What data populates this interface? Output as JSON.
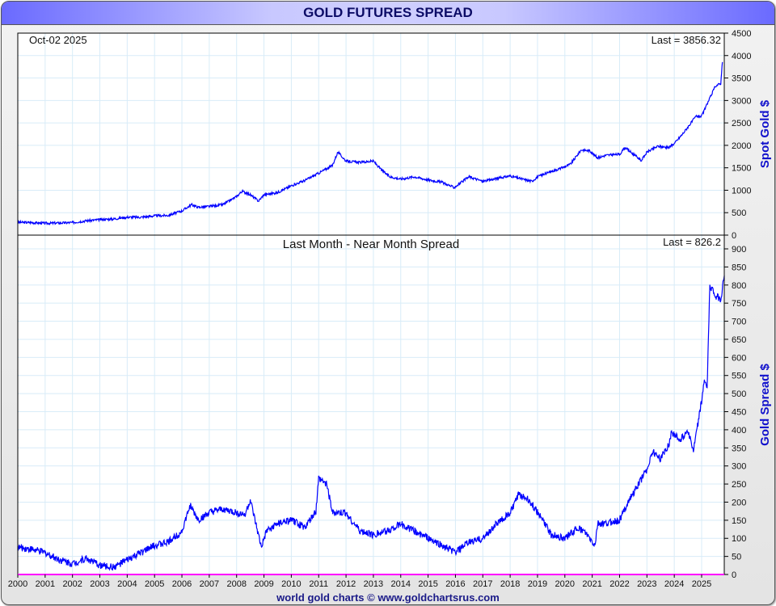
{
  "title": "GOLD FUTURES SPREAD",
  "footer": "world gold charts © www.goldchartsrus.com",
  "colors": {
    "line": "#0000ff",
    "grid": "#d8ecf8",
    "baseline": "#ff00ff",
    "axis_title": "#1010cc"
  },
  "chart_data": [
    {
      "type": "line",
      "date_label": "Oct-02  2025",
      "last_label": "Last = 3856.32",
      "ylabel": "Spot Gold $",
      "ylim": [
        0,
        4500
      ],
      "yticks": [
        0,
        500,
        1000,
        1500,
        2000,
        2500,
        3000,
        3500,
        4000,
        4500
      ],
      "x": [
        2000,
        2000.5,
        2001,
        2001.5,
        2002,
        2002.5,
        2003,
        2003.5,
        2004,
        2004.5,
        2005,
        2005.5,
        2006,
        2006.35,
        2006.6,
        2007,
        2007.5,
        2008,
        2008.2,
        2008.5,
        2008.8,
        2009,
        2009.5,
        2010,
        2010.5,
        2011,
        2011.5,
        2011.7,
        2012,
        2012.5,
        2013,
        2013.3,
        2013.6,
        2014,
        2014.5,
        2015,
        2015.5,
        2015.95,
        2016.5,
        2017,
        2017.5,
        2018,
        2018.5,
        2018.8,
        2019,
        2019.5,
        2019.9,
        2020.2,
        2020.6,
        2020.9,
        2021.2,
        2021.5,
        2022,
        2022.2,
        2022.8,
        2023,
        2023.4,
        2023.8,
        2024,
        2024.3,
        2024.8,
        2025,
        2025.3,
        2025.5,
        2025.7,
        2025.76
      ],
      "values": [
        285,
        280,
        265,
        270,
        280,
        320,
        345,
        360,
        400,
        400,
        430,
        440,
        540,
        680,
        620,
        640,
        680,
        860,
        980,
        900,
        760,
        900,
        950,
        1100,
        1220,
        1380,
        1550,
        1850,
        1650,
        1620,
        1650,
        1450,
        1300,
        1250,
        1300,
        1230,
        1180,
        1060,
        1300,
        1200,
        1260,
        1320,
        1240,
        1200,
        1300,
        1420,
        1500,
        1580,
        1900,
        1880,
        1720,
        1780,
        1800,
        1950,
        1660,
        1850,
        1980,
        1950,
        2040,
        2250,
        2650,
        2650,
        3050,
        3320,
        3380,
        3856
      ]
    },
    {
      "type": "line",
      "title": "Last Month - Near Month Spread",
      "last_label": "Last = 826.2",
      "ylabel": "Gold Spread $",
      "ylim": [
        0,
        900
      ],
      "yticks": [
        0,
        50,
        100,
        150,
        200,
        250,
        300,
        350,
        400,
        450,
        500,
        550,
        600,
        650,
        700,
        750,
        800,
        850,
        900
      ],
      "xlabel_ticks": [
        "2000",
        "2001",
        "2002",
        "2003",
        "2004",
        "2005",
        "2006",
        "2007",
        "2008",
        "2009",
        "2010",
        "2011",
        "2012",
        "2013",
        "2014",
        "2015",
        "2016",
        "2017",
        "2018",
        "2019",
        "2020",
        "2021",
        "2022",
        "2023",
        "2024",
        "2025"
      ],
      "x": [
        2000,
        2000.5,
        2001,
        2001.5,
        2002,
        2002.5,
        2003,
        2003.5,
        2004,
        2004.5,
        2005,
        2005.5,
        2006,
        2006.3,
        2006.6,
        2007,
        2007.5,
        2008,
        2008.3,
        2008.5,
        2008.9,
        2009.1,
        2009.5,
        2010,
        2010.5,
        2010.9,
        2011.0,
        2011.3,
        2011.5,
        2012,
        2012.5,
        2013,
        2013.5,
        2014,
        2014.5,
        2015,
        2015.5,
        2016,
        2016.5,
        2017,
        2017.5,
        2018,
        2018.3,
        2018.7,
        2019.2,
        2019.5,
        2020,
        2020.5,
        2020.8,
        2021.1,
        2021.2,
        2021.5,
        2022,
        2022.3,
        2022.7,
        2023,
        2023.2,
        2023.5,
        2023.8,
        2023.9,
        2024.2,
        2024.5,
        2024.7,
        2024.85,
        2025,
        2025.1,
        2025.2,
        2025.3,
        2025.5,
        2025.7,
        2025.83
      ],
      "values": [
        75,
        70,
        60,
        42,
        30,
        45,
        25,
        20,
        40,
        60,
        80,
        90,
        120,
        190,
        150,
        170,
        180,
        170,
        165,
        205,
        75,
        120,
        140,
        150,
        130,
        175,
        265,
        250,
        170,
        170,
        120,
        110,
        120,
        140,
        120,
        100,
        80,
        62,
        90,
        100,
        140,
        170,
        220,
        205,
        150,
        110,
        100,
        130,
        110,
        80,
        140,
        140,
        150,
        200,
        250,
        290,
        340,
        320,
        360,
        395,
        370,
        400,
        340,
        410,
        480,
        540,
        510,
        800,
        770,
        760,
        826
      ]
    }
  ]
}
